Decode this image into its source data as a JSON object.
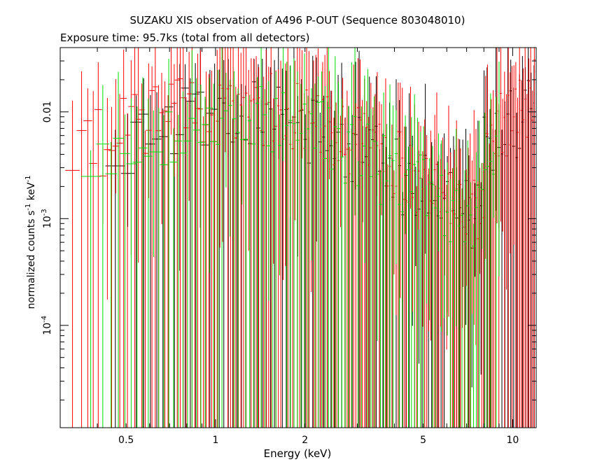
{
  "chart_data": {
    "type": "scatter",
    "title": "SUZAKU XIS observation of A496 P-OUT (Sequence 803048010)",
    "subtitle": "Exposure time: 95.7ks (total from all detectors)",
    "xlabel": "Energy (keV)",
    "ylabel_text": "normalized counts s",
    "ylabel_exp1": "-1",
    "ylabel_mid": " keV",
    "ylabel_exp2": "-1",
    "xscale": "log",
    "yscale": "log",
    "xlim": [
      0.3,
      12
    ],
    "ylim": [
      1.1e-05,
      0.04
    ],
    "grid": false,
    "x_tick_labels": [
      {
        "value": 0.5,
        "label": "0.5"
      },
      {
        "value": 1,
        "label": "1"
      },
      {
        "value": 2,
        "label": "2"
      },
      {
        "value": 5,
        "label": "5"
      },
      {
        "value": 10,
        "label": "10"
      }
    ],
    "y_tick_labels": [
      {
        "value": 0.01,
        "base": "0.01",
        "exp": ""
      },
      {
        "value": 0.001,
        "base": "10",
        "exp": "-3"
      },
      {
        "value": 0.0001,
        "base": "10",
        "exp": "-4"
      }
    ],
    "series": [
      {
        "color": "#000000",
        "seed": 11,
        "emin": 0.46,
        "emax": 11.8,
        "n": 110,
        "scale": 1.0
      },
      {
        "color": "#ff0000",
        "seed": 29,
        "emin": 0.33,
        "emax": 12.0,
        "n": 190,
        "scale": 1.25
      },
      {
        "color": "#00dd00",
        "seed": 53,
        "emin": 0.38,
        "emax": 9.0,
        "n": 110,
        "scale": 0.95
      }
    ]
  }
}
